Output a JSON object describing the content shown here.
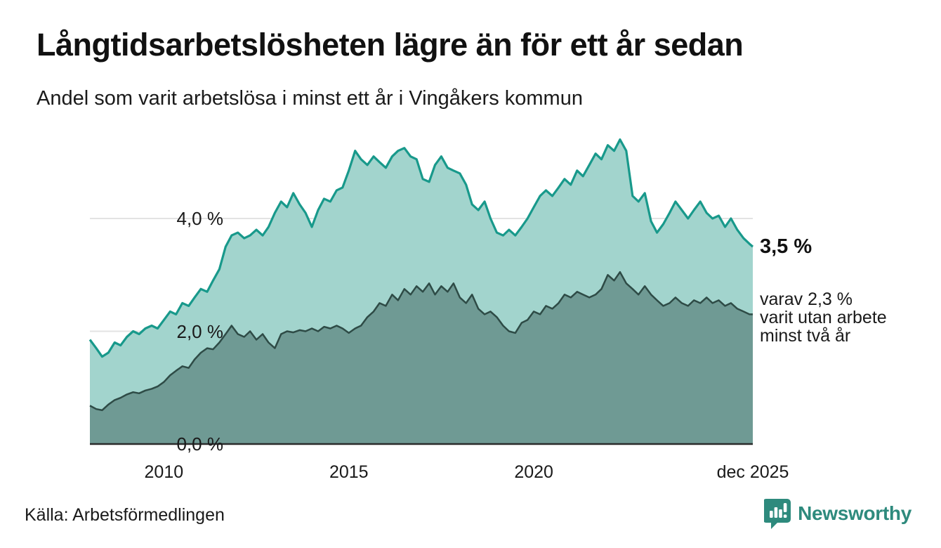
{
  "header": {
    "title": "Långtidsarbetslösheten lägre än för ett år sedan",
    "subtitle": "Andel som varit arbetslösa i minst ett år i Vingåkers kommun"
  },
  "annotations": {
    "latest_value": "3,5 %",
    "secondary_lines": [
      "varav 2,3 %",
      "varit utan arbete",
      "minst två år"
    ]
  },
  "footer": {
    "source": "Källa: Arbetsförmedlingen",
    "brand": "Newsworthy"
  },
  "colors": {
    "series1_line": "#18998b",
    "series1_fill": "#a2d4cd",
    "series2_line": "#2e4b46",
    "series2_fill": "#6f9a94",
    "gridline": "#e3e3e3",
    "axisline": "#2b2b2b",
    "brand_teal": "#2e8a7d",
    "text": "#1a1a1a"
  },
  "chart_data": {
    "type": "area",
    "title": "Långtidsarbetslösheten lägre än för ett år sedan",
    "subtitle": "Andel som varit arbetslösa i minst ett år i Vingåkers kommun",
    "xlabel": "",
    "ylabel": "",
    "x_min": 2008.0,
    "x_max": 2025.92,
    "ylim": [
      0,
      5.6
    ],
    "grid": true,
    "legend_position": "none",
    "y_ticks": [
      {
        "label": "0,0 %",
        "value": 0
      },
      {
        "label": "2,0 %",
        "value": 2
      },
      {
        "label": "4,0 %",
        "value": 4
      }
    ],
    "x_ticks": [
      {
        "label": "2010",
        "year": 2010
      },
      {
        "label": "2015",
        "year": 2015
      },
      {
        "label": "2020",
        "year": 2020
      },
      {
        "label": "dec 2025",
        "year": 2025.92
      }
    ],
    "x": [
      2008.0,
      2008.17,
      2008.33,
      2008.5,
      2008.67,
      2008.83,
      2009.0,
      2009.17,
      2009.33,
      2009.5,
      2009.67,
      2009.83,
      2010.0,
      2010.17,
      2010.33,
      2010.5,
      2010.67,
      2010.83,
      2011.0,
      2011.17,
      2011.33,
      2011.5,
      2011.67,
      2011.83,
      2012.0,
      2012.17,
      2012.33,
      2012.5,
      2012.67,
      2012.83,
      2013.0,
      2013.17,
      2013.33,
      2013.5,
      2013.67,
      2013.83,
      2014.0,
      2014.17,
      2014.33,
      2014.5,
      2014.67,
      2014.83,
      2015.0,
      2015.17,
      2015.33,
      2015.5,
      2015.67,
      2015.83,
      2016.0,
      2016.17,
      2016.33,
      2016.5,
      2016.67,
      2016.83,
      2017.0,
      2017.17,
      2017.33,
      2017.5,
      2017.67,
      2017.83,
      2018.0,
      2018.17,
      2018.33,
      2018.5,
      2018.67,
      2018.83,
      2019.0,
      2019.17,
      2019.33,
      2019.5,
      2019.67,
      2019.83,
      2020.0,
      2020.17,
      2020.33,
      2020.5,
      2020.67,
      2020.83,
      2021.0,
      2021.17,
      2021.33,
      2021.5,
      2021.67,
      2021.83,
      2022.0,
      2022.17,
      2022.33,
      2022.5,
      2022.67,
      2022.83,
      2023.0,
      2023.17,
      2023.33,
      2023.5,
      2023.67,
      2023.83,
      2024.0,
      2024.17,
      2024.33,
      2024.5,
      2024.67,
      2024.83,
      2025.0,
      2025.17,
      2025.33,
      2025.5,
      2025.67,
      2025.83,
      2025.92
    ],
    "series": [
      {
        "name": "Arbetslösa minst ett år",
        "latest_label": "3,5 %",
        "values": [
          1.85,
          1.7,
          1.55,
          1.62,
          1.8,
          1.75,
          1.9,
          2.0,
          1.95,
          2.05,
          2.1,
          2.05,
          2.2,
          2.35,
          2.3,
          2.5,
          2.45,
          2.6,
          2.75,
          2.7,
          2.9,
          3.1,
          3.5,
          3.7,
          3.75,
          3.65,
          3.7,
          3.8,
          3.7,
          3.85,
          4.1,
          4.3,
          4.2,
          4.45,
          4.25,
          4.1,
          3.85,
          4.15,
          4.35,
          4.3,
          4.5,
          4.55,
          4.85,
          5.2,
          5.05,
          4.95,
          5.1,
          5.0,
          4.9,
          5.1,
          5.2,
          5.25,
          5.1,
          5.05,
          4.7,
          4.65,
          4.95,
          5.1,
          4.9,
          4.85,
          4.8,
          4.6,
          4.25,
          4.15,
          4.3,
          4.0,
          3.75,
          3.7,
          3.8,
          3.7,
          3.85,
          4.0,
          4.2,
          4.4,
          4.5,
          4.4,
          4.55,
          4.7,
          4.6,
          4.85,
          4.75,
          4.95,
          5.15,
          5.05,
          5.3,
          5.2,
          5.4,
          5.2,
          4.4,
          4.3,
          4.45,
          3.95,
          3.75,
          3.9,
          4.1,
          4.3,
          4.15,
          4.0,
          4.15,
          4.3,
          4.1,
          4.0,
          4.05,
          3.85,
          4.0,
          3.8,
          3.65,
          3.55,
          3.5
        ]
      },
      {
        "name": "varav arbetslösa minst två år",
        "latest_label": "varav 2,3 % varit utan arbete minst två år",
        "values": [
          0.68,
          0.62,
          0.6,
          0.7,
          0.78,
          0.82,
          0.88,
          0.92,
          0.9,
          0.95,
          0.98,
          1.02,
          1.1,
          1.22,
          1.3,
          1.38,
          1.35,
          1.5,
          1.62,
          1.7,
          1.68,
          1.8,
          1.95,
          2.1,
          1.95,
          1.9,
          2.0,
          1.85,
          1.95,
          1.8,
          1.7,
          1.95,
          2.0,
          1.98,
          2.02,
          2.0,
          2.05,
          2.0,
          2.08,
          2.05,
          2.1,
          2.05,
          1.97,
          2.05,
          2.1,
          2.25,
          2.35,
          2.5,
          2.45,
          2.65,
          2.55,
          2.75,
          2.65,
          2.8,
          2.7,
          2.85,
          2.65,
          2.8,
          2.7,
          2.85,
          2.6,
          2.5,
          2.65,
          2.4,
          2.3,
          2.35,
          2.25,
          2.1,
          2.0,
          1.97,
          2.15,
          2.2,
          2.35,
          2.3,
          2.45,
          2.4,
          2.5,
          2.65,
          2.6,
          2.7,
          2.65,
          2.6,
          2.65,
          2.75,
          3.0,
          2.9,
          3.05,
          2.85,
          2.75,
          2.65,
          2.8,
          2.65,
          2.55,
          2.45,
          2.5,
          2.6,
          2.5,
          2.45,
          2.55,
          2.5,
          2.6,
          2.5,
          2.55,
          2.45,
          2.5,
          2.4,
          2.35,
          2.3,
          2.3
        ]
      }
    ]
  }
}
